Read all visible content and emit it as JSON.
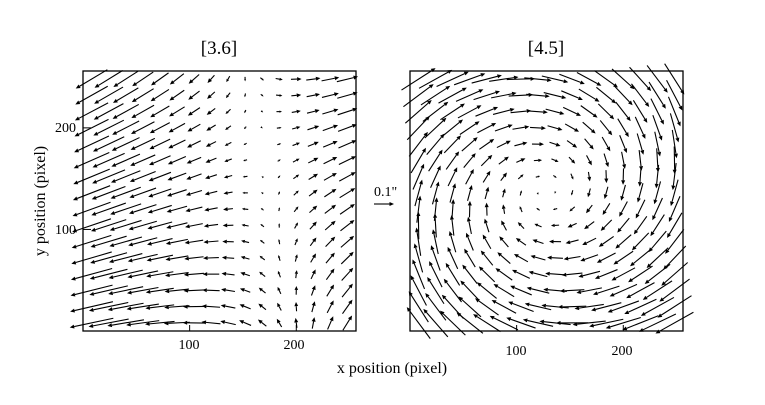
{
  "chart_data": {
    "type": "vector_field",
    "xlabel": "x position (pixel)",
    "ylabel": "y position (pixel)",
    "scale_label": "0.1\"",
    "scale_arcsec": 0.1,
    "xlim": [
      0,
      256
    ],
    "ylim": [
      0,
      256
    ],
    "grid_x": [
      8,
      24,
      40,
      56,
      72,
      88,
      104,
      120,
      136,
      152,
      168,
      184,
      200,
      216,
      232,
      248
    ],
    "grid_y": [
      8,
      24,
      40,
      56,
      72,
      88,
      104,
      120,
      136,
      152,
      168,
      184,
      200,
      216,
      232,
      248
    ],
    "panels": [
      {
        "title": "[3.6]",
        "xticks": [
          100,
          200
        ],
        "yticks": [
          100,
          200
        ],
        "field_model": {
          "center": [
            168,
            176
          ],
          "a": 0.0011,
          "b": 0.00025,
          "c": 0.0005,
          "d": -0.0002
        }
      },
      {
        "title": "[4.5]",
        "xticks": [
          100,
          200
        ],
        "yticks": [],
        "field_model": {
          "center": [
            128,
            136
          ],
          "a": -0.0003,
          "b": 0.0012,
          "c": -0.0011,
          "d": -0.0002
        }
      }
    ]
  }
}
